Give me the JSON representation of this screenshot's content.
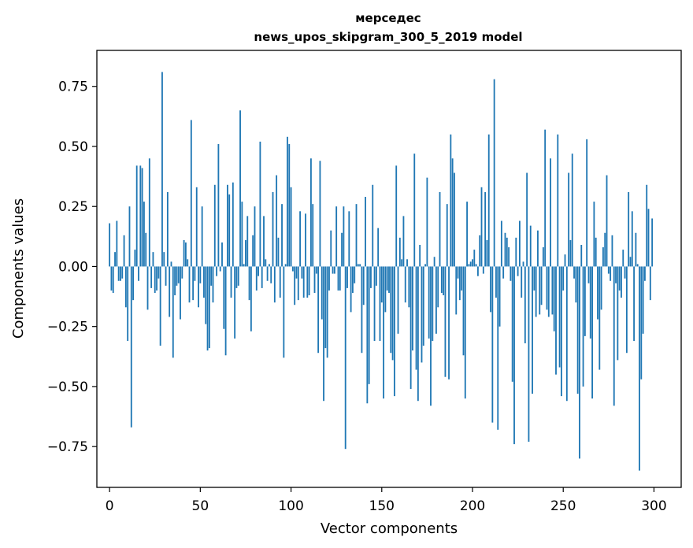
{
  "chart_data": {
    "type": "bar",
    "title_line1": "мерседес",
    "title_line2": "news_upos_skipgram_300_5_2019 model",
    "xlabel": "Vector components",
    "ylabel": "Components values",
    "xlim": [
      -7,
      315
    ],
    "ylim": [
      -0.92,
      0.9
    ],
    "xticks": [
      0,
      50,
      100,
      150,
      200,
      250,
      300
    ],
    "yticks": [
      -0.75,
      -0.5,
      -0.25,
      0.0,
      0.25,
      0.5,
      0.75
    ],
    "ytick_labels": [
      "−0.75",
      "−0.50",
      "−0.25",
      "0.00",
      "0.25",
      "0.50",
      "0.75"
    ],
    "bar_color": "#1f77b4",
    "values": [
      0.18,
      -0.1,
      -0.11,
      0.06,
      0.19,
      -0.06,
      -0.06,
      -0.05,
      0.13,
      -0.17,
      -0.31,
      0.25,
      -0.67,
      -0.14,
      0.07,
      0.42,
      -0.06,
      0.42,
      0.41,
      0.27,
      0.14,
      -0.18,
      0.45,
      -0.09,
      0.06,
      -0.11,
      -0.1,
      -0.05,
      -0.33,
      0.81,
      0.06,
      -0.08,
      0.31,
      -0.21,
      0.02,
      -0.38,
      -0.12,
      -0.08,
      -0.07,
      -0.22,
      -0.05,
      0.11,
      0.1,
      0.03,
      -0.15,
      0.61,
      -0.14,
      -0.06,
      0.33,
      -0.17,
      -0.07,
      0.25,
      -0.13,
      -0.24,
      -0.35,
      -0.34,
      -0.08,
      -0.15,
      0.34,
      -0.04,
      0.51,
      -0.02,
      0.1,
      -0.26,
      -0.37,
      0.34,
      0.3,
      -0.13,
      0.35,
      -0.3,
      -0.09,
      -0.08,
      0.65,
      0.27,
      0.01,
      0.11,
      0.21,
      -0.14,
      -0.27,
      0.13,
      0.25,
      -0.1,
      -0.04,
      0.52,
      -0.09,
      0.21,
      0.03,
      -0.06,
      0.01,
      -0.07,
      0.31,
      -0.15,
      0.38,
      0.12,
      -0.13,
      0.26,
      -0.38,
      0.01,
      0.54,
      0.51,
      0.33,
      -0.02,
      -0.16,
      -0.05,
      -0.14,
      0.23,
      -0.05,
      -0.13,
      0.22,
      -0.13,
      -0.12,
      0.45,
      0.26,
      -0.11,
      -0.03,
      -0.36,
      0.44,
      -0.22,
      -0.56,
      -0.34,
      -0.38,
      -0.1,
      0.15,
      -0.03,
      -0.03,
      0.25,
      -0.1,
      -0.1,
      0.14,
      0.25,
      -0.76,
      -0.09,
      0.23,
      -0.19,
      -0.11,
      -0.07,
      0.26,
      0.01,
      0.01,
      -0.36,
      -0.16,
      0.29,
      -0.57,
      -0.49,
      -0.09,
      0.34,
      -0.31,
      -0.08,
      0.16,
      -0.31,
      -0.15,
      -0.55,
      -0.19,
      -0.1,
      -0.11,
      -0.36,
      -0.39,
      -0.54,
      0.42,
      -0.28,
      0.12,
      0.03,
      0.21,
      -0.15,
      0.03,
      -0.17,
      -0.51,
      -0.35,
      0.47,
      -0.43,
      -0.56,
      0.09,
      -0.4,
      -0.33,
      0.01,
      0.37,
      -0.3,
      -0.58,
      -0.31,
      0.04,
      -0.28,
      -0.17,
      0.31,
      -0.11,
      -0.12,
      -0.46,
      0.26,
      -0.47,
      0.55,
      0.45,
      0.39,
      -0.2,
      -0.05,
      -0.14,
      -0.1,
      -0.37,
      -0.55,
      0.27,
      0.01,
      0.02,
      0.03,
      0.07,
      0.01,
      -0.04,
      0.13,
      0.33,
      -0.03,
      0.31,
      0.11,
      0.55,
      -0.19,
      -0.65,
      0.78,
      -0.13,
      -0.68,
      -0.25,
      0.19,
      -0.05,
      0.14,
      0.12,
      0.08,
      -0.06,
      -0.48,
      -0.74,
      0.12,
      -0.04,
      0.19,
      -0.13,
      0.02,
      -0.32,
      0.39,
      -0.73,
      0.17,
      -0.53,
      -0.1,
      -0.21,
      0.15,
      -0.2,
      -0.16,
      0.08,
      0.57,
      -0.18,
      -0.21,
      0.45,
      -0.2,
      -0.27,
      -0.45,
      0.55,
      -0.42,
      -0.54,
      -0.1,
      0.05,
      -0.56,
      0.39,
      0.11,
      0.47,
      -0.05,
      -0.15,
      -0.53,
      -0.8,
      0.09,
      -0.5,
      -0.29,
      0.53,
      -0.07,
      -0.3,
      -0.55,
      0.27,
      0.12,
      -0.22,
      -0.43,
      -0.18,
      0.08,
      0.14,
      0.38,
      -0.03,
      -0.06,
      0.13,
      -0.58,
      -0.07,
      -0.39,
      -0.1,
      -0.13,
      0.07,
      -0.05,
      -0.36,
      0.31,
      0.04,
      0.23,
      -0.31,
      0.14,
      0.01,
      -0.85,
      -0.47,
      -0.28,
      -0.06,
      0.34,
      0.24,
      -0.14,
      0.2
    ]
  }
}
